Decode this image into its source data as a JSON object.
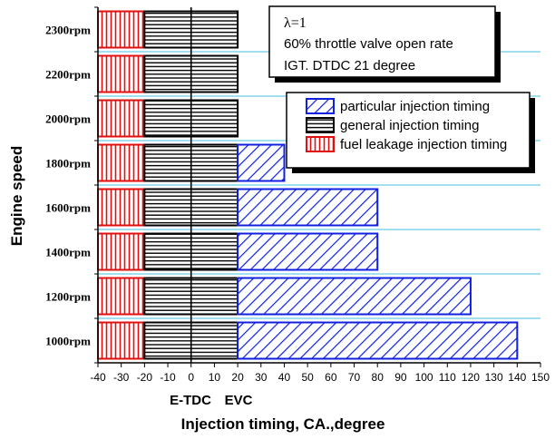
{
  "chart_data": {
    "type": "bar",
    "orientation": "horizontal",
    "stacked_ranges": true,
    "categories": [
      "1000rpm",
      "1200rpm",
      "1400rpm",
      "1600rpm",
      "1800rpm",
      "2000rpm",
      "2200rpm",
      "2300rpm"
    ],
    "series": [
      {
        "name": "fuel leakage injection timing",
        "color": "#e01010",
        "pattern": "vertical-lines",
        "ranges": [
          [
            -40,
            -20
          ],
          [
            -40,
            -20
          ],
          [
            -40,
            -20
          ],
          [
            -40,
            -20
          ],
          [
            -40,
            -20
          ],
          [
            -40,
            -20
          ],
          [
            -40,
            -20
          ],
          [
            -40,
            -20
          ]
        ]
      },
      {
        "name": "general injection timing",
        "color": "#000000",
        "pattern": "horizontal-lines",
        "ranges": [
          [
            -20,
            20
          ],
          [
            -20,
            20
          ],
          [
            -20,
            20
          ],
          [
            -20,
            20
          ],
          [
            -20,
            20
          ],
          [
            -20,
            20
          ],
          [
            -20,
            20
          ],
          [
            -20,
            20
          ]
        ]
      },
      {
        "name": "particular injection timing",
        "color": "#1020e0",
        "pattern": "diagonal-lines",
        "ranges": [
          [
            20,
            140
          ],
          [
            20,
            120
          ],
          [
            20,
            80
          ],
          [
            20,
            80
          ],
          [
            20,
            40
          ],
          null,
          null,
          null
        ]
      }
    ],
    "xlim": [
      -40,
      150
    ],
    "xticks": [
      "-40",
      "-30",
      "-20",
      "-10",
      "0",
      "10",
      "20",
      "30",
      "40",
      "50",
      "60",
      "70",
      "80",
      "90",
      "100",
      "110",
      "120",
      "130",
      "140",
      "150"
    ],
    "xlabel": "Injection timing, CA.,degree",
    "ylabel": "Engine speed",
    "x_markers": [
      {
        "value": 0,
        "label": "E-TDC"
      },
      {
        "value": 20,
        "label": "EVC"
      }
    ],
    "grid": "horizontal",
    "grid_color": "#40c0e0",
    "legend_placement": "upper-right",
    "annotation": {
      "lambda": "λ=1",
      "line2": "60%  throttle valve open rate",
      "line3": "IGT. DTDC 21 degree"
    }
  }
}
